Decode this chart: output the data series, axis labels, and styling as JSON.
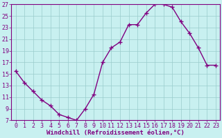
{
  "x": [
    0,
    1,
    2,
    3,
    4,
    5,
    6,
    7,
    8,
    9,
    10,
    11,
    12,
    13,
    14,
    15,
    16,
    17,
    18,
    19,
    20,
    21,
    22,
    23
  ],
  "y": [
    15.5,
    13.5,
    12.0,
    10.5,
    9.5,
    8.0,
    7.5,
    7.0,
    9.0,
    11.5,
    17.0,
    19.5,
    20.5,
    23.5,
    23.5,
    25.5,
    27.0,
    27.0,
    26.5,
    24.0,
    22.0,
    19.5,
    16.5,
    16.5
  ],
  "line_color": "#800080",
  "marker": "+",
  "background_color": "#c8f0f0",
  "grid_color": "#99cccc",
  "xlabel": "Windchill (Refroidissement éolien,°C)",
  "ylim": [
    7,
    27
  ],
  "xlim": [
    -0.5,
    23.5
  ],
  "yticks": [
    7,
    9,
    11,
    13,
    15,
    17,
    19,
    21,
    23,
    25,
    27
  ],
  "xticks": [
    0,
    1,
    2,
    3,
    4,
    5,
    6,
    7,
    8,
    9,
    10,
    11,
    12,
    13,
    14,
    15,
    16,
    17,
    18,
    19,
    20,
    21,
    22,
    23
  ],
  "xlabel_color": "#800080",
  "tick_color": "#800080",
  "spine_color": "#800080",
  "linewidth": 1.0,
  "markersize": 4,
  "tick_fontsize": 6,
  "xlabel_fontsize": 6.5
}
